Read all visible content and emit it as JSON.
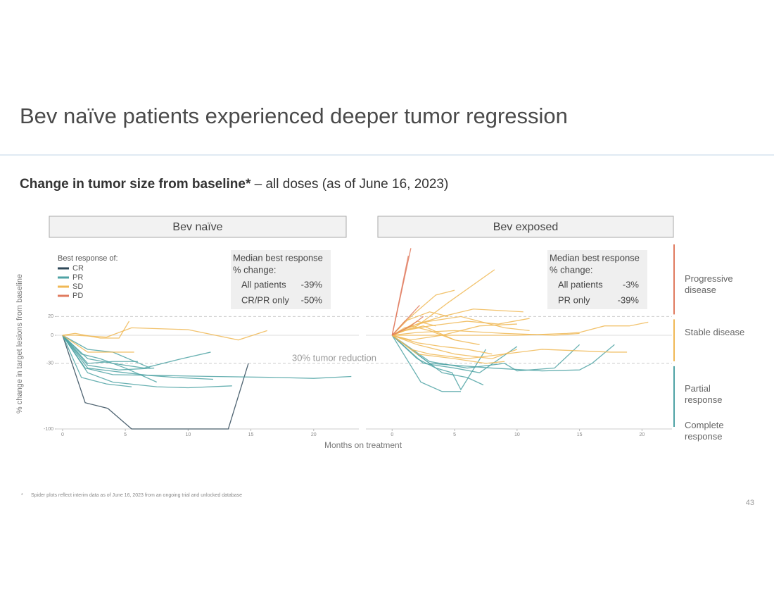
{
  "page": {
    "title": "Bev naïve patients experienced deeper tumor regression",
    "subtitle_bold": "Change in tumor size from baseline*",
    "subtitle_rest": " – all doses (as of June 16, 2023)",
    "y_label": "% change in target lesions from baseline",
    "x_label": "Months on treatment",
    "annotation": "30% tumor reduction",
    "footnote_mark": "*",
    "footnote": "Spider plots reflect interim data as of June 16, 2023 from an ongoing trial and unlocked database",
    "page_number": "43",
    "legend_title": "Best response of:",
    "response_bands": [
      {
        "label": "Progressive disease",
        "color": "#e07b5f"
      },
      {
        "label": "Stable disease",
        "color": "#f0b855"
      },
      {
        "label": "Partial response",
        "color": "#4fa3a5"
      },
      {
        "label": "Complete response",
        "color": "#4fa3a5"
      }
    ]
  },
  "chart_data": [
    {
      "type": "line",
      "title": "Bev naïve",
      "xlim": [
        -0.5,
        23.6
      ],
      "xticks": [
        0,
        5,
        10,
        15,
        20
      ],
      "ylim": [
        -100,
        100
      ],
      "yticks": [
        20,
        0,
        -30,
        -100
      ],
      "median": {
        "title_lines": [
          "Median best response",
          "% change:"
        ],
        "rows": [
          [
            "All patients",
            "-39%"
          ],
          [
            "CR/PR only",
            "-50%"
          ]
        ]
      },
      "series": [
        {
          "name": "CR",
          "color": "#2f4858",
          "lines": [
            {
              "x": [
                0,
                1.8,
                3.6,
                5.5,
                7,
                13.2,
                14.8
              ],
              "values": [
                0,
                -72,
                -78,
                -100,
                -100,
                -100,
                -30
              ]
            }
          ]
        },
        {
          "name": "PR",
          "color": "#4fa3a5",
          "lines": [
            {
              "x": [
                0,
                1.8,
                4,
                8,
                12,
                17,
                20,
                23
              ],
              "values": [
                0,
                -35,
                -42,
                -43,
                -44,
                -45,
                -46,
                -44
              ]
            },
            {
              "x": [
                0,
                2,
                4,
                7.5,
                10,
                13.5
              ],
              "values": [
                0,
                -40,
                -50,
                -55,
                -56,
                -54
              ]
            },
            {
              "x": [
                0,
                1.5,
                3.5,
                5.5
              ],
              "values": [
                0,
                -45,
                -52,
                -55
              ]
            },
            {
              "x": [
                0,
                2,
                4,
                6.5,
                9.5,
                11.8
              ],
              "values": [
                0,
                -25,
                -30,
                -35,
                -25,
                -18
              ]
            },
            {
              "x": [
                0,
                2,
                5,
                7,
                9,
                12
              ],
              "values": [
                0,
                -35,
                -40,
                -43,
                -45,
                -47
              ]
            },
            {
              "x": [
                0,
                1.5,
                3,
                5,
                7.5
              ],
              "values": [
                0,
                -20,
                -25,
                -35,
                -50
              ]
            },
            {
              "x": [
                0,
                2,
                4,
                6
              ],
              "values": [
                0,
                -30,
                -28,
                -28
              ]
            },
            {
              "x": [
                0,
                2,
                4.5,
                7.3
              ],
              "values": [
                0,
                -32,
                -37,
                -35
              ]
            },
            {
              "x": [
                0,
                2,
                4,
                7
              ],
              "values": [
                0,
                -15,
                -18,
                -35
              ]
            }
          ]
        },
        {
          "name": "SD",
          "color": "#f0b855",
          "lines": [
            {
              "x": [
                0,
                2,
                4,
                5.7
              ],
              "values": [
                0,
                -18,
                -18,
                -18
              ]
            },
            {
              "x": [
                0,
                1,
                3.5,
                5.5,
                10,
                14,
                16.3
              ],
              "values": [
                0,
                0,
                -2,
                8,
                6,
                -5,
                5
              ]
            },
            {
              "x": [
                0,
                1,
                3,
                4.5,
                5.3
              ],
              "values": [
                0,
                2,
                -3,
                -3,
                15
              ]
            }
          ]
        },
        {
          "name": "PD",
          "color": "#e07b5f",
          "lines": []
        }
      ]
    },
    {
      "type": "line",
      "title": "Bev exposed",
      "xlim": [
        -2.1,
        22.4
      ],
      "xticks": [
        0,
        5,
        10,
        15,
        20
      ],
      "median": {
        "title_lines": [
          "Median best response",
          "% change:"
        ],
        "rows": [
          [
            "All patients",
            "-3%"
          ],
          [
            "PR only",
            "-39%"
          ]
        ]
      },
      "series": [
        {
          "name": "CR",
          "color": "#2f4858",
          "lines": []
        },
        {
          "name": "PR",
          "color": "#4fa3a5",
          "lines": [
            {
              "x": [
                0,
                2.3,
                4,
                5.5
              ],
              "values": [
                0,
                -50,
                -60,
                -60
              ]
            },
            {
              "x": [
                0,
                2,
                3.5,
                4.8,
                5.5,
                7.5
              ],
              "values": [
                0,
                -25,
                -35,
                -40,
                -58,
                -15
              ]
            },
            {
              "x": [
                0,
                2.5,
                5,
                7,
                10
              ],
              "values": [
                0,
                -30,
                -35,
                -40,
                -12
              ]
            },
            {
              "x": [
                0,
                3,
                6,
                9,
                10,
                13,
                15
              ],
              "values": [
                0,
                -28,
                -35,
                -30,
                -38,
                -35,
                -10
              ]
            },
            {
              "x": [
                0,
                2,
                4,
                6,
                7.3
              ],
              "values": [
                0,
                -20,
                -40,
                -45,
                -53
              ]
            },
            {
              "x": [
                0,
                3,
                8,
                12,
                15,
                16,
                17.8
              ],
              "values": [
                0,
                -30,
                -35,
                -38,
                -37,
                -30,
                -10
              ]
            }
          ]
        },
        {
          "name": "SD",
          "color": "#f0b855",
          "lines": [
            {
              "x": [
                0,
                2,
                4.5,
                8.2
              ],
              "values": [
                0,
                10,
                35,
                70
              ]
            },
            {
              "x": [
                0,
                1.5,
                3.5,
                5
              ],
              "values": [
                0,
                20,
                43,
                48
              ]
            },
            {
              "x": [
                0,
                2,
                4,
                6.5,
                10.5
              ],
              "values": [
                0,
                12,
                20,
                28,
                25
              ]
            },
            {
              "x": [
                0,
                1,
                3,
                6,
                8.5,
                11
              ],
              "values": [
                0,
                5,
                10,
                15,
                12,
                18
              ]
            },
            {
              "x": [
                0,
                1.5,
                4,
                7,
                10
              ],
              "values": [
                0,
                -5,
                0,
                10,
                12
              ]
            },
            {
              "x": [
                0,
                2,
                5,
                9,
                13,
                15
              ],
              "values": [
                0,
                3,
                5,
                2,
                0,
                2
              ]
            },
            {
              "x": [
                0,
                5,
                10,
                14,
                15,
                17,
                19,
                20.5
              ],
              "values": [
                0,
                0,
                0,
                2,
                3,
                10,
                10,
                14
              ]
            },
            {
              "x": [
                0,
                2,
                5,
                8,
                10
              ],
              "values": [
                0,
                -10,
                -20,
                -25,
                -15
              ]
            },
            {
              "x": [
                0,
                1.5,
                3,
                6,
                9,
                12,
                17.5,
                18.8
              ],
              "values": [
                0,
                -15,
                -20,
                -25,
                -20,
                -15,
                -18,
                -18
              ]
            },
            {
              "x": [
                0,
                1,
                2.5,
                5,
                7
              ],
              "values": [
                0,
                5,
                10,
                -5,
                -10
              ]
            },
            {
              "x": [
                0,
                1,
                3,
                4.5
              ],
              "values": [
                0,
                15,
                25,
                20
              ]
            },
            {
              "x": [
                0,
                0.8,
                2,
                3.5
              ],
              "values": [
                0,
                5,
                15,
                10
              ]
            },
            {
              "x": [
                0,
                2,
                4,
                6,
                8
              ],
              "values": [
                0,
                -8,
                -12,
                -15,
                -20
              ]
            },
            {
              "x": [
                0,
                1,
                3,
                5.5,
                9,
                11
              ],
              "values": [
                0,
                8,
                15,
                20,
                8,
                5
              ]
            },
            {
              "x": [
                0,
                2,
                5,
                7.5,
                9
              ],
              "values": [
                0,
                -20,
                -25,
                -30,
                -28
              ]
            },
            {
              "x": [
                0,
                1.5,
                3,
                5
              ],
              "values": [
                0,
                10,
                5,
                -5
              ]
            }
          ]
        },
        {
          "name": "PD",
          "color": "#e07b5f",
          "lines": [
            {
              "x": [
                0,
                1.5
              ],
              "values": [
                0,
                93
              ]
            },
            {
              "x": [
                0,
                1.3
              ],
              "values": [
                0,
                85
              ]
            },
            {
              "x": [
                0,
                2.2
              ],
              "values": [
                0,
                32
              ]
            },
            {
              "x": [
                0,
                1.5,
                2.5
              ],
              "values": [
                0,
                10,
                20
              ]
            }
          ]
        }
      ]
    }
  ]
}
